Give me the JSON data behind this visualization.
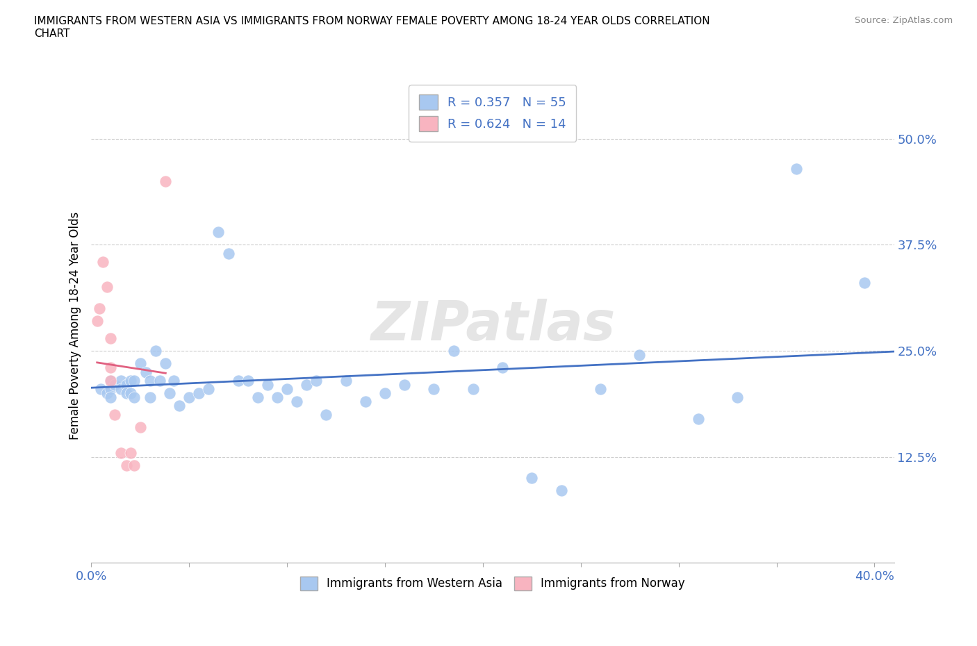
{
  "title": "IMMIGRANTS FROM WESTERN ASIA VS IMMIGRANTS FROM NORWAY FEMALE POVERTY AMONG 18-24 YEAR OLDS CORRELATION\nCHART",
  "source": "Source: ZipAtlas.com",
  "ylabel": "Female Poverty Among 18-24 Year Olds",
  "watermark": "ZIPatlas",
  "series1_label": "Immigrants from Western Asia",
  "series2_label": "Immigrants from Norway",
  "series1_color": "#a8c8f0",
  "series2_color": "#f8b4c0",
  "series1_line_color": "#4472c4",
  "series2_line_color": "#e06080",
  "legend_text_color": "#4472c4",
  "R1": 0.357,
  "N1": 55,
  "R2": 0.624,
  "N2": 14,
  "xlim": [
    0.0,
    0.41
  ],
  "ylim": [
    0.0,
    0.56
  ],
  "ytick_positions": [
    0.125,
    0.25,
    0.375,
    0.5
  ],
  "ytick_labels": [
    "12.5%",
    "25.0%",
    "37.5%",
    "50.0%"
  ],
  "xtick_positions": [
    0.0,
    0.05,
    0.1,
    0.15,
    0.2,
    0.25,
    0.3,
    0.35,
    0.4
  ],
  "xtick_labels_show": {
    "0.0": "0.0%",
    "0.4": "40.0%"
  },
  "series1_x": [
    0.005,
    0.008,
    0.01,
    0.01,
    0.01,
    0.012,
    0.015,
    0.015,
    0.018,
    0.018,
    0.02,
    0.02,
    0.022,
    0.022,
    0.025,
    0.028,
    0.03,
    0.03,
    0.033,
    0.035,
    0.038,
    0.04,
    0.042,
    0.045,
    0.05,
    0.055,
    0.06,
    0.065,
    0.07,
    0.075,
    0.08,
    0.085,
    0.09,
    0.095,
    0.1,
    0.105,
    0.11,
    0.115,
    0.12,
    0.13,
    0.14,
    0.15,
    0.16,
    0.175,
    0.185,
    0.195,
    0.21,
    0.225,
    0.24,
    0.26,
    0.28,
    0.31,
    0.33,
    0.36,
    0.395
  ],
  "series1_y": [
    0.205,
    0.2,
    0.215,
    0.205,
    0.195,
    0.21,
    0.215,
    0.205,
    0.21,
    0.2,
    0.215,
    0.2,
    0.215,
    0.195,
    0.235,
    0.225,
    0.215,
    0.195,
    0.25,
    0.215,
    0.235,
    0.2,
    0.215,
    0.185,
    0.195,
    0.2,
    0.205,
    0.39,
    0.365,
    0.215,
    0.215,
    0.195,
    0.21,
    0.195,
    0.205,
    0.19,
    0.21,
    0.215,
    0.175,
    0.215,
    0.19,
    0.2,
    0.21,
    0.205,
    0.25,
    0.205,
    0.23,
    0.1,
    0.085,
    0.205,
    0.245,
    0.17,
    0.195,
    0.465,
    0.33
  ],
  "series2_x": [
    0.003,
    0.004,
    0.006,
    0.008,
    0.01,
    0.01,
    0.01,
    0.012,
    0.015,
    0.018,
    0.02,
    0.022,
    0.025,
    0.038
  ],
  "series2_y": [
    0.285,
    0.3,
    0.355,
    0.325,
    0.265,
    0.23,
    0.215,
    0.175,
    0.13,
    0.115,
    0.13,
    0.115,
    0.16,
    0.45
  ]
}
